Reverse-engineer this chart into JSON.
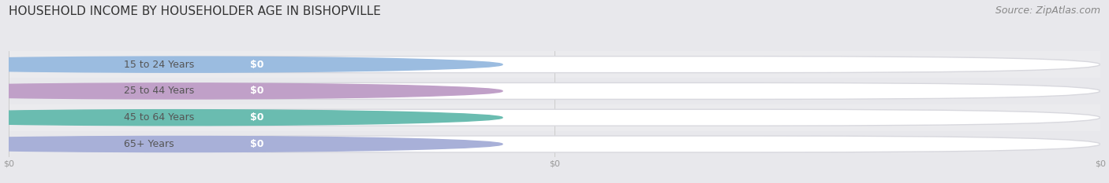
{
  "title": "HOUSEHOLD INCOME BY HOUSEHOLDER AGE IN BISHOPVILLE",
  "source": "Source: ZipAtlas.com",
  "categories": [
    "15 to 24 Years",
    "25 to 44 Years",
    "45 to 64 Years",
    "65+ Years"
  ],
  "values": [
    0,
    0,
    0,
    0
  ],
  "bar_colors": [
    "#9bbce0",
    "#c0a0c8",
    "#6abcb0",
    "#a8b0d8"
  ],
  "background_color": "#e8e8ec",
  "row_bg_color": "#ebebee",
  "track_color": "#ffffff",
  "track_edge_color": "#d8d8de",
  "title_fontsize": 11,
  "source_fontsize": 9,
  "label_fontsize": 9,
  "value_fontsize": 9,
  "tick_fontsize": 8,
  "tick_color": "#999999",
  "title_color": "#333333",
  "source_color": "#888888",
  "label_color": "#555555",
  "value_text_color": "#ffffff",
  "grid_color": "#cccccc",
  "xtick_labels": [
    "$0",
    "$0",
    "$0"
  ],
  "xtick_positions": [
    0.0,
    0.5,
    1.0
  ]
}
